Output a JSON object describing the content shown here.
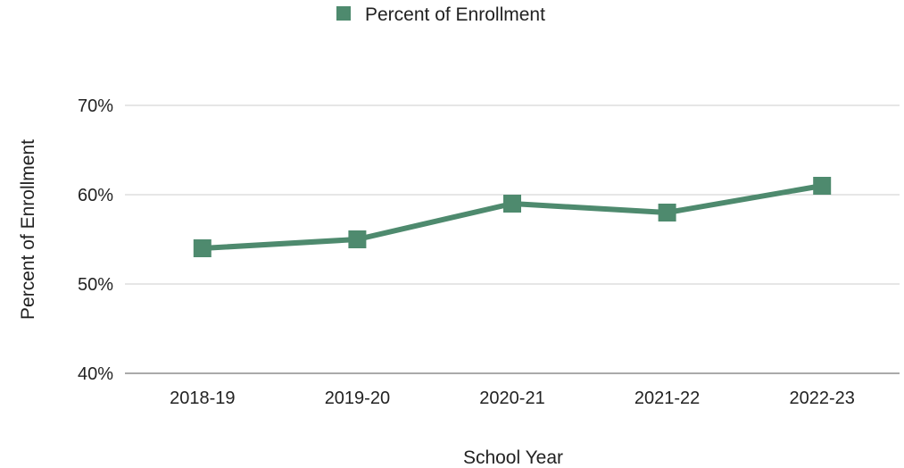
{
  "chart_data": {
    "type": "line",
    "title": "",
    "categories": [
      "2018-19",
      "2019-20",
      "2020-21",
      "2021-22",
      "2022-23"
    ],
    "series": [
      {
        "name": "Percent of Enrollment",
        "values": [
          54,
          55,
          59,
          58,
          61
        ],
        "color": "#4e8a6e"
      }
    ],
    "xlabel": "School Year",
    "ylabel": "Percent of Enrollment",
    "ylim": [
      40,
      70
    ],
    "yticks": [
      40,
      50,
      60,
      70
    ],
    "ytick_labels": [
      "40%",
      "50%",
      "60%",
      "70%"
    ],
    "grid": true,
    "legend_position": "top-center"
  }
}
